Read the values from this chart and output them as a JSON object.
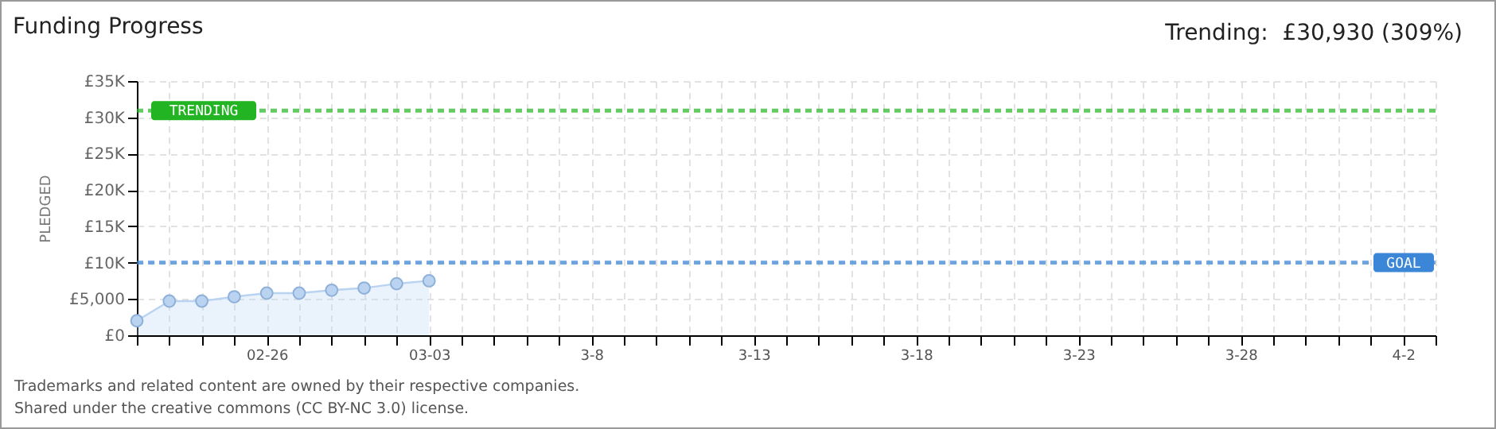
{
  "chart_data": {
    "type": "area",
    "title": "Funding Progress",
    "ylabel": "PLEDGED",
    "x": [
      "--02-22",
      "--02-23",
      "--02-24",
      "--02-25",
      "--02-26",
      "--02-27",
      "--02-28",
      "--03-01",
      "--03-02",
      "--03-03"
    ],
    "series": [
      {
        "color": "#b9d3f1",
        "values": [
          2000,
          4700,
          4700,
          5300,
          5800,
          5800,
          6200,
          6500,
          7100,
          7500
        ]
      }
    ],
    "xlim": [
      "--02-22",
      "--04-03"
    ],
    "xticks": [
      {
        "value": "--02-22",
        "label": null
      },
      {
        "value": "--02-23",
        "label": null
      },
      {
        "value": "--02-24",
        "label": null
      },
      {
        "value": "--02-25",
        "label": null
      },
      {
        "value": "--02-26",
        "label": "02-26"
      },
      {
        "value": "--02-27",
        "label": null
      },
      {
        "value": "--02-28",
        "label": null
      },
      {
        "value": "--03-01",
        "label": null
      },
      {
        "value": "--03-02",
        "label": null
      },
      {
        "value": "--03-03",
        "label": "03-03"
      },
      {
        "value": "--03-04",
        "label": null
      },
      {
        "value": "--03-05",
        "label": null
      },
      {
        "value": "--03-06",
        "label": null
      },
      {
        "value": "--03-07",
        "label": null
      },
      {
        "value": "--03-08",
        "label": "3-8"
      },
      {
        "value": "--03-09",
        "label": null
      },
      {
        "value": "--03-10",
        "label": null
      },
      {
        "value": "--03-11",
        "label": null
      },
      {
        "value": "--03-12",
        "label": null
      },
      {
        "value": "--03-13",
        "label": "3-13"
      },
      {
        "value": "--03-14",
        "label": null
      },
      {
        "value": "--03-15",
        "label": null
      },
      {
        "value": "--03-16",
        "label": null
      },
      {
        "value": "--03-17",
        "label": null
      },
      {
        "value": "--03-18",
        "label": "3-18"
      },
      {
        "value": "--03-19",
        "label": null
      },
      {
        "value": "--03-20",
        "label": null
      },
      {
        "value": "--03-21",
        "label": null
      },
      {
        "value": "--03-22",
        "label": null
      },
      {
        "value": "--03-23",
        "label": "3-23"
      },
      {
        "value": "--03-24",
        "label": null
      },
      {
        "value": "--03-25",
        "label": null
      },
      {
        "value": "--03-26",
        "label": null
      },
      {
        "value": "--03-27",
        "label": null
      },
      {
        "value": "--03-28",
        "label": "3-28"
      },
      {
        "value": "--03-29",
        "label": null
      },
      {
        "value": "--03-30",
        "label": null
      },
      {
        "value": "--03-31",
        "label": null
      },
      {
        "value": "--04-01",
        "label": null
      },
      {
        "value": "--04-02",
        "label": "4-2"
      },
      {
        "value": "--04-03",
        "label": null
      }
    ],
    "ylim": [
      0,
      35000
    ],
    "yticks": [
      {
        "value": 0,
        "label": "£0"
      },
      {
        "value": 5000,
        "label": "£5,000"
      },
      {
        "value": 10000,
        "label": "£10K"
      },
      {
        "value": 15000,
        "label": "£15K"
      },
      {
        "value": 20000,
        "label": "£20K"
      },
      {
        "value": 25000,
        "label": "£25K"
      },
      {
        "value": 30000,
        "label": "£30K"
      },
      {
        "value": 35000,
        "label": "£35K"
      }
    ],
    "grid": true,
    "marker": "circle",
    "ref_lines": [
      {
        "axis": "y",
        "value": 30930,
        "label": "TRENDING",
        "color": "#22b422",
        "line_style": "dashed"
      },
      {
        "axis": "y",
        "value": 10000,
        "label": "GOAL",
        "color": "#3b86d6",
        "line_style": "dashed"
      }
    ],
    "annotations": [
      "Trending:  £30,930 (309%)",
      "Trademarks and related content are owned by their respective companies.",
      "Shared under the creative commons (CC BY-NC 3.0) license."
    ]
  }
}
